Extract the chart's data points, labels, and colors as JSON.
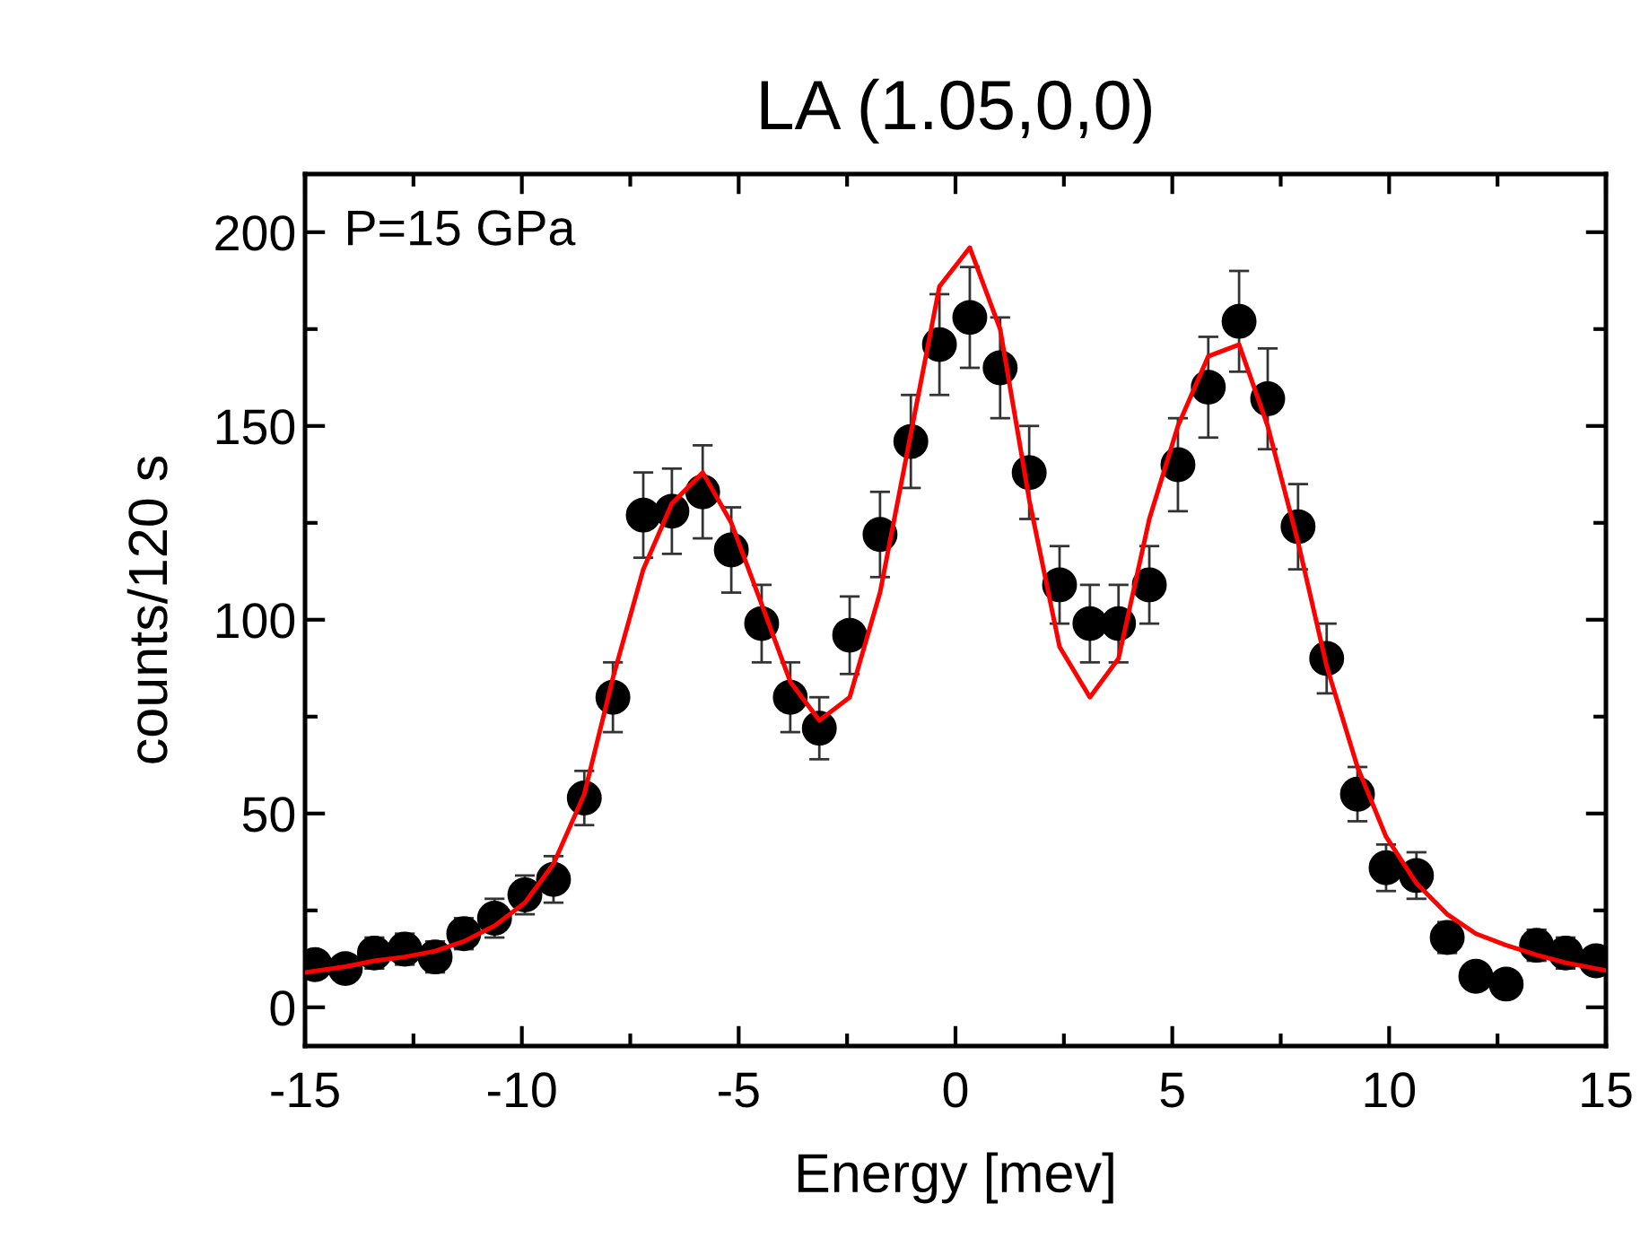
{
  "chart_data": {
    "type": "scatter",
    "title": "LA (1.05,0,0)",
    "xlabel": "Energy [mev]",
    "ylabel": "counts/120 s",
    "annotations": [
      "P=15 GPa"
    ],
    "xlim": [
      -15,
      15
    ],
    "xticks": [
      -15,
      -10,
      -5,
      0,
      5,
      10,
      15
    ],
    "ylim": [
      -10,
      215
    ],
    "yticks": [
      0,
      50,
      100,
      150,
      200
    ],
    "grid": false,
    "legend": false,
    "marker": "circle",
    "series": [
      {
        "color": "#000000",
        "x": [
          -14.77,
          -14.07,
          -13.4,
          -12.7,
          -12.0,
          -11.34,
          -10.63,
          -9.93,
          -9.27,
          -8.56,
          -7.9,
          -7.2,
          -6.54,
          -5.83,
          -5.17,
          -4.47,
          -3.81,
          -3.14,
          -2.44,
          -1.74,
          -1.03,
          -0.37,
          0.33,
          1.03,
          1.7,
          2.4,
          3.1,
          3.76,
          4.47,
          5.13,
          5.83,
          6.54,
          7.2,
          7.9,
          8.56,
          9.27,
          9.93,
          10.63,
          11.34,
          12.0,
          12.7,
          13.4,
          14.07,
          14.77
        ],
        "values": [
          11,
          10,
          14,
          15,
          13,
          19,
          23,
          29,
          33,
          54,
          80,
          127,
          128,
          133,
          118,
          99,
          80,
          72,
          96,
          122,
          146,
          171,
          178,
          165,
          138,
          109,
          99,
          99,
          109,
          140,
          160,
          177,
          157,
          124,
          90,
          55,
          36,
          34,
          18,
          8,
          6,
          16,
          14,
          12
        ],
        "errors": [
          3,
          3,
          4,
          4,
          4,
          4,
          5,
          5,
          6,
          7,
          9,
          11,
          11,
          12,
          11,
          10,
          9,
          8,
          10,
          11,
          12,
          13,
          13,
          13,
          12,
          10,
          10,
          10,
          10,
          12,
          13,
          13,
          13,
          11,
          9,
          7,
          6,
          6,
          4,
          3,
          2,
          4,
          4,
          3
        ]
      },
      {
        "type": "line",
        "color": "#ff0000",
        "marker": "none",
        "line_style": "solid",
        "x": [
          -15,
          -14.07,
          -13.4,
          -12.7,
          -12.0,
          -11.34,
          -10.63,
          -9.93,
          -9.27,
          -8.56,
          -7.9,
          -7.2,
          -6.54,
          -5.83,
          -5.17,
          -4.47,
          -3.81,
          -3.14,
          -2.44,
          -1.74,
          -1.03,
          -0.37,
          0.33,
          1.03,
          1.7,
          2.4,
          3.1,
          3.76,
          4.47,
          5.13,
          5.83,
          6.54,
          7.2,
          7.9,
          8.56,
          9.27,
          9.93,
          10.63,
          11.34,
          12.0,
          12.7,
          13.4,
          14.07,
          14.77,
          15
        ],
        "values": [
          9,
          10.5,
          12,
          13,
          14.5,
          17,
          21,
          27,
          37,
          55,
          85,
          113,
          130,
          138,
          125,
          104,
          84,
          74,
          80,
          107,
          148,
          186,
          196,
          175,
          131,
          93,
          80,
          90,
          126,
          150,
          168,
          171,
          150,
          120,
          88,
          62,
          44,
          32,
          24,
          19,
          16,
          13.5,
          11.5,
          10,
          9.5
        ]
      }
    ]
  }
}
